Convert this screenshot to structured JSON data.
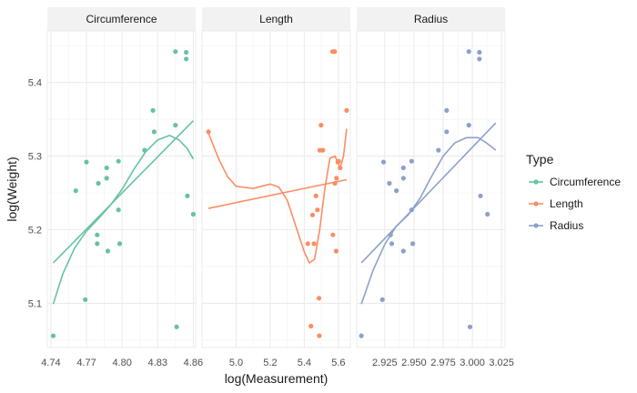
{
  "chart_data": {
    "type": "scatter",
    "facet_labels": [
      "Circumference",
      "Length",
      "Radius"
    ],
    "xlabel": "log(Measurement)",
    "ylabel": "log(Weight)",
    "ylim": [
      5.04,
      5.47
    ],
    "yticks": [
      5.1,
      5.2,
      5.3,
      5.4
    ],
    "ytick_labels": [
      "5.1",
      "5.2",
      "5.3",
      "5.4"
    ],
    "grid": true,
    "legend": {
      "title": "Type",
      "placement": "right",
      "entries": [
        {
          "name": "Circumference",
          "color": "#66c2a5"
        },
        {
          "name": "Length",
          "color": "#fc8d62"
        },
        {
          "name": "Radius",
          "color": "#8da0cb"
        }
      ]
    },
    "panels": [
      {
        "facet": "Circumference",
        "color": "#66c2a5",
        "xlim": [
          4.737,
          4.862
        ],
        "xticks": [
          4.74,
          4.77,
          4.8,
          4.83,
          4.86
        ],
        "xtick_labels": [
          "4.74",
          "4.77",
          "4.80",
          "4.83",
          "4.86"
        ],
        "points": [
          [
            4.742,
            5.056
          ],
          [
            4.761,
            5.253
          ],
          [
            4.769,
            5.105
          ],
          [
            4.77,
            5.292
          ],
          [
            4.779,
            5.193
          ],
          [
            4.779,
            5.181
          ],
          [
            4.78,
            5.263
          ],
          [
            4.787,
            5.284
          ],
          [
            4.787,
            5.27
          ],
          [
            4.788,
            5.171
          ],
          [
            4.797,
            5.293
          ],
          [
            4.797,
            5.227
          ],
          [
            4.798,
            5.181
          ],
          [
            4.819,
            5.308
          ],
          [
            4.826,
            5.362
          ],
          [
            4.827,
            5.333
          ],
          [
            4.845,
            5.442
          ],
          [
            4.845,
            5.342
          ],
          [
            4.846,
            5.068
          ],
          [
            4.854,
            5.441
          ],
          [
            4.854,
            5.432
          ],
          [
            4.855,
            5.246
          ],
          [
            4.86,
            5.221
          ]
        ],
        "linear_fit": [
          [
            4.742,
            5.155
          ],
          [
            4.86,
            5.348
          ]
        ],
        "smooth_fit": [
          [
            4.742,
            5.099
          ],
          [
            4.75,
            5.14
          ],
          [
            4.76,
            5.175
          ],
          [
            4.77,
            5.198
          ],
          [
            4.78,
            5.215
          ],
          [
            4.79,
            5.233
          ],
          [
            4.8,
            5.255
          ],
          [
            4.81,
            5.282
          ],
          [
            4.82,
            5.306
          ],
          [
            4.83,
            5.322
          ],
          [
            4.84,
            5.328
          ],
          [
            4.848,
            5.322
          ],
          [
            4.855,
            5.31
          ],
          [
            4.86,
            5.296
          ]
        ]
      },
      {
        "facet": "Length",
        "color": "#fc8d62",
        "xlim": [
          4.8,
          5.67
        ],
        "xticks": [
          5.0,
          5.2,
          5.4,
          5.6
        ],
        "xtick_labels": [
          "5.0",
          "5.2",
          "5.4",
          "5.6"
        ],
        "points": [
          [
            4.838,
            5.333
          ],
          [
            5.42,
            5.181
          ],
          [
            5.439,
            5.069
          ],
          [
            5.448,
            5.22
          ],
          [
            5.457,
            5.181
          ],
          [
            5.468,
            5.246
          ],
          [
            5.477,
            5.227
          ],
          [
            5.486,
            5.107
          ],
          [
            5.488,
            5.056
          ],
          [
            5.491,
            5.308
          ],
          [
            5.498,
            5.342
          ],
          [
            5.509,
            5.308
          ],
          [
            5.566,
            5.442
          ],
          [
            5.568,
            5.193
          ],
          [
            5.578,
            5.442
          ],
          [
            5.58,
            5.263
          ],
          [
            5.587,
            5.171
          ],
          [
            5.589,
            5.27
          ],
          [
            5.597,
            5.292
          ],
          [
            5.601,
            5.293
          ],
          [
            5.61,
            5.284
          ],
          [
            5.648,
            5.362
          ]
        ],
        "linear_fit": [
          [
            4.838,
            5.229
          ],
          [
            5.648,
            5.268
          ]
        ],
        "smooth_fit": [
          [
            4.838,
            5.331
          ],
          [
            4.9,
            5.295
          ],
          [
            4.95,
            5.272
          ],
          [
            5.0,
            5.259
          ],
          [
            5.1,
            5.256
          ],
          [
            5.2,
            5.262
          ],
          [
            5.25,
            5.258
          ],
          [
            5.3,
            5.24
          ],
          [
            5.35,
            5.205
          ],
          [
            5.4,
            5.17
          ],
          [
            5.43,
            5.155
          ],
          [
            5.46,
            5.16
          ],
          [
            5.49,
            5.2
          ],
          [
            5.52,
            5.255
          ],
          [
            5.55,
            5.297
          ],
          [
            5.58,
            5.3
          ],
          [
            5.61,
            5.284
          ],
          [
            5.63,
            5.3
          ],
          [
            5.648,
            5.337
          ]
        ]
      },
      {
        "facet": "Radius",
        "color": "#8da0cb",
        "xlim": [
          2.901,
          3.028
        ],
        "xticks": [
          2.925,
          2.95,
          2.975,
          3.0,
          3.025
        ],
        "xtick_labels": [
          "2.925",
          "2.950",
          "2.975",
          "3.000",
          "3.025"
        ],
        "points": [
          [
            2.905,
            5.056
          ],
          [
            2.923,
            5.105
          ],
          [
            2.924,
            5.292
          ],
          [
            2.929,
            5.263
          ],
          [
            2.93,
            5.193
          ],
          [
            2.931,
            5.181
          ],
          [
            2.935,
            5.253
          ],
          [
            2.941,
            5.171
          ],
          [
            2.941,
            5.27
          ],
          [
            2.941,
            5.284
          ],
          [
            2.948,
            5.293
          ],
          [
            2.948,
            5.227
          ],
          [
            2.949,
            5.181
          ],
          [
            2.971,
            5.308
          ],
          [
            2.978,
            5.362
          ],
          [
            2.978,
            5.333
          ],
          [
            2.997,
            5.442
          ],
          [
            2.997,
            5.342
          ],
          [
            2.998,
            5.068
          ],
          [
            3.006,
            5.441
          ],
          [
            3.006,
            5.432
          ],
          [
            3.007,
            5.246
          ],
          [
            3.013,
            5.221
          ]
        ],
        "linear_fit": [
          [
            2.905,
            5.155
          ],
          [
            3.02,
            5.345
          ]
        ],
        "smooth_fit": [
          [
            2.905,
            5.099
          ],
          [
            2.915,
            5.145
          ],
          [
            2.925,
            5.18
          ],
          [
            2.935,
            5.205
          ],
          [
            2.945,
            5.22
          ],
          [
            2.955,
            5.242
          ],
          [
            2.965,
            5.272
          ],
          [
            2.975,
            5.3
          ],
          [
            2.985,
            5.318
          ],
          [
            2.995,
            5.325
          ],
          [
            3.005,
            5.325
          ],
          [
            3.012,
            5.318
          ],
          [
            3.02,
            5.308
          ]
        ]
      }
    ]
  }
}
